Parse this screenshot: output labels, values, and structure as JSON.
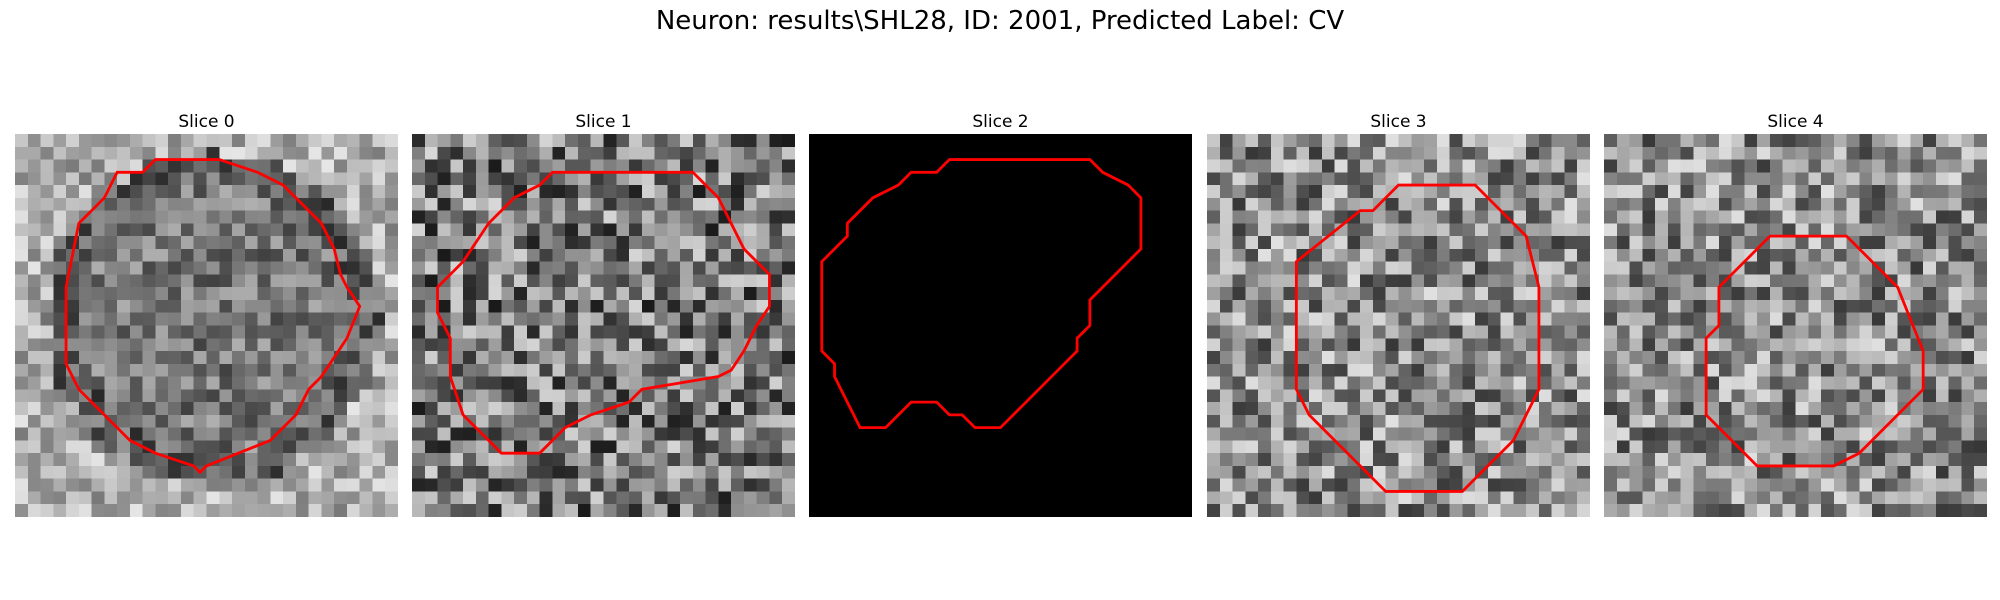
{
  "figure_title": "Neuron: results\\SHL28, ID: 2001, Predicted Label: CV",
  "colors": {
    "contour": "#ff0000",
    "background": "#ffffff"
  },
  "colormap": "gray",
  "grid_size": 30,
  "slices": [
    {
      "label": "Slice 0",
      "style": "soma"
    },
    {
      "label": "Slice 1",
      "style": "noise"
    },
    {
      "label": "Slice 2",
      "style": "black"
    },
    {
      "label": "Slice 3",
      "style": "noise-light"
    },
    {
      "label": "Slice 4",
      "style": "noise-light"
    }
  ]
}
